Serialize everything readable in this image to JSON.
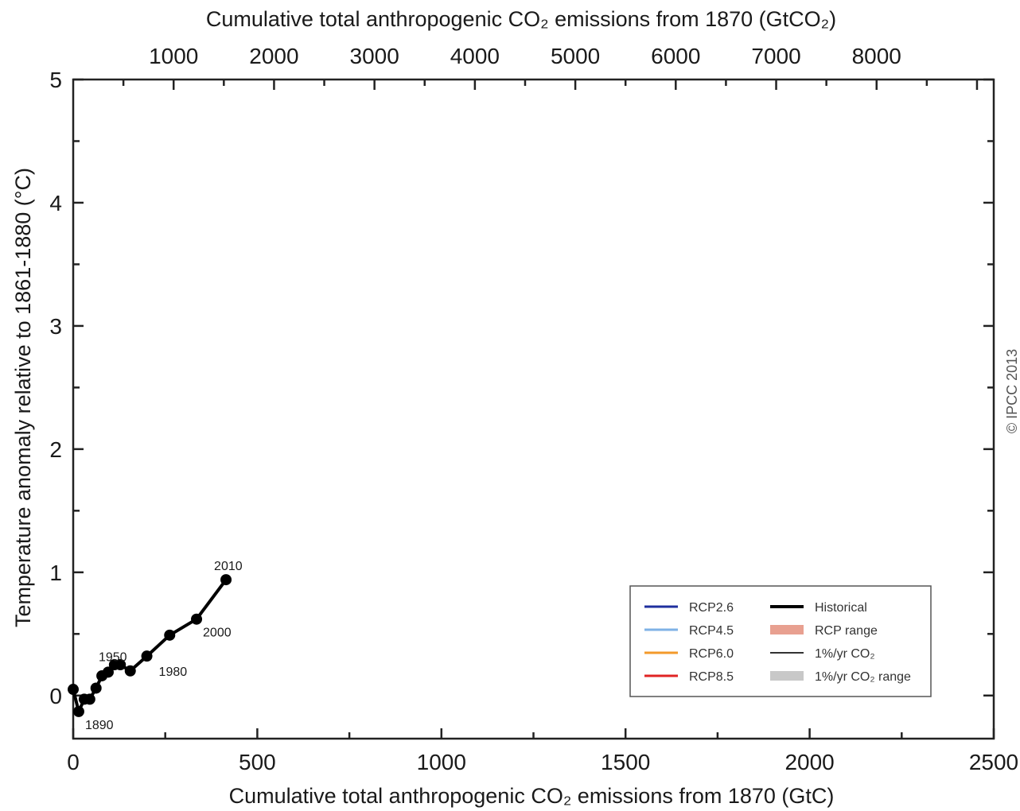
{
  "chart_data": {
    "type": "line",
    "title": "",
    "xlabel": "Cumulative total anthropogenic CO₂ emissions from 1870 (GtC)",
    "x2label": "Cumulative total anthropogenic CO₂ emissions from 1870 (GtCO₂)",
    "ylabel": "Temperature anomaly relative to 1861-1880 (°C)",
    "xlim": [
      0,
      2500
    ],
    "ylim": [
      -0.35,
      5
    ],
    "x2lim": [
      0,
      9166.67
    ],
    "x_ticks": [
      0,
      500,
      1000,
      1500,
      2000,
      2500
    ],
    "x_tick_labels": [
      "0",
      "500",
      "1000",
      "1500",
      "2000",
      "2500"
    ],
    "x2_ticks": [
      1000,
      2000,
      3000,
      4000,
      5000,
      6000,
      7000,
      8000
    ],
    "x2_tick_labels": [
      "1000",
      "2000",
      "3000",
      "4000",
      "5000",
      "6000",
      "7000",
      "8000"
    ],
    "y_ticks": [
      0,
      1,
      2,
      3,
      4,
      5
    ],
    "y_tick_labels": [
      "0",
      "1",
      "2",
      "3",
      "4",
      "5"
    ],
    "grid": false,
    "series": [
      {
        "name": "Historical",
        "color": "#000000",
        "x": [
          0,
          15,
          30,
          45,
          62,
          78,
          95,
          112,
          128,
          155,
          200,
          262,
          335,
          415
        ],
        "y": [
          0.05,
          -0.13,
          -0.03,
          -0.03,
          0.06,
          0.16,
          0.19,
          0.25,
          0.25,
          0.2,
          0.32,
          0.49,
          0.62,
          0.94
        ]
      }
    ],
    "year_annotations": [
      {
        "text": "1890",
        "x": 15,
        "y": -0.13
      },
      {
        "text": "1950",
        "x": 95,
        "y": 0.19
      },
      {
        "text": "1980",
        "x": 200,
        "y": 0.32
      },
      {
        "text": "2000",
        "x": 335,
        "y": 0.62
      },
      {
        "text": "2010",
        "x": 415,
        "y": 0.94
      }
    ],
    "legend": {
      "placement": "bottom-right",
      "entries": [
        {
          "label": "RCP2.6",
          "color": "#1f2f9e",
          "kind": "line"
        },
        {
          "label": "RCP4.5",
          "color": "#7fb2e6",
          "kind": "line"
        },
        {
          "label": "RCP6.0",
          "color": "#f39a2b",
          "kind": "line"
        },
        {
          "label": "RCP8.5",
          "color": "#e02424",
          "kind": "line"
        },
        {
          "label": "Historical",
          "color": "#000000",
          "kind": "thick-line"
        },
        {
          "label": "RCP range",
          "color": "#e8a090",
          "kind": "patch"
        },
        {
          "label": "1%/yr CO₂",
          "color": "#333333",
          "kind": "thin-line"
        },
        {
          "label": "1%/yr CO₂ range",
          "color": "#c8c8c8",
          "kind": "patch"
        }
      ]
    }
  },
  "copyright": "© IPCC 2013"
}
